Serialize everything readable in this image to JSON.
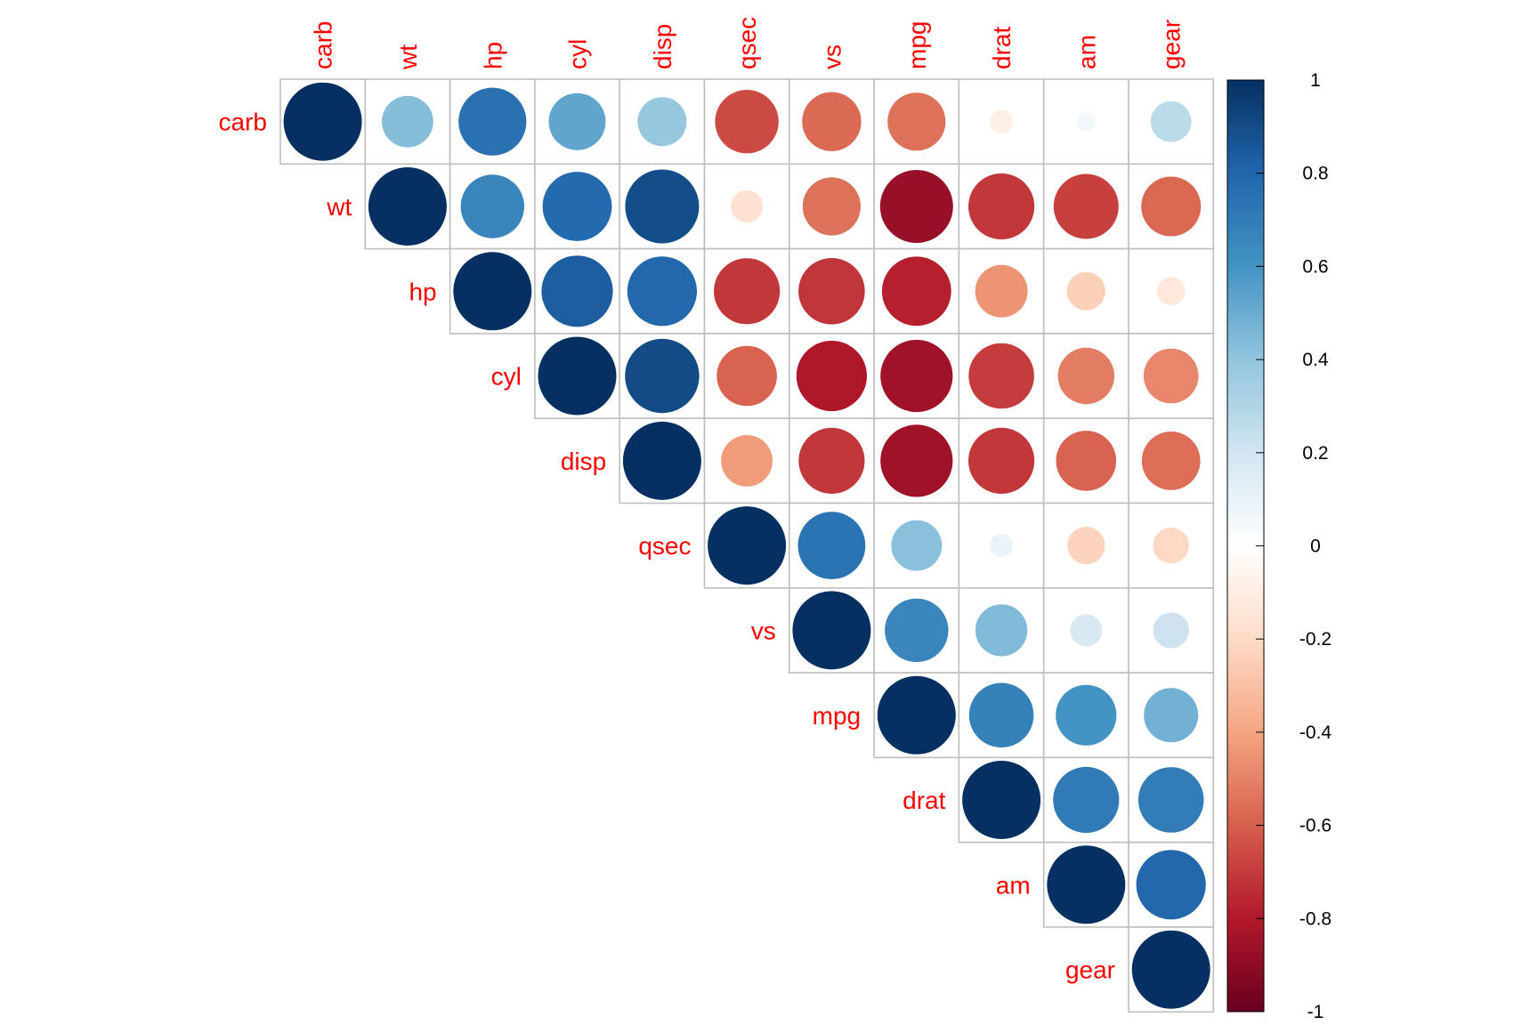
{
  "chart_data": {
    "type": "heatmap",
    "variables": [
      "carb",
      "wt",
      "hp",
      "cyl",
      "disp",
      "qsec",
      "vs",
      "mpg",
      "drat",
      "am",
      "gear"
    ],
    "values": [
      [
        1,
        0.43,
        0.75,
        0.53,
        0.39,
        -0.66,
        -0.57,
        -0.55,
        -0.09,
        0.06,
        0.27
      ],
      [
        null,
        1,
        0.66,
        0.78,
        0.89,
        -0.17,
        -0.55,
        -0.87,
        -0.71,
        -0.69,
        -0.58
      ],
      [
        null,
        null,
        1,
        0.83,
        0.79,
        -0.71,
        -0.72,
        -0.78,
        -0.45,
        -0.24,
        -0.13
      ],
      [
        null,
        null,
        null,
        1,
        0.9,
        -0.59,
        -0.81,
        -0.85,
        -0.7,
        -0.52,
        -0.49
      ],
      [
        null,
        null,
        null,
        null,
        1,
        -0.43,
        -0.71,
        -0.85,
        -0.71,
        -0.59,
        -0.56
      ],
      [
        null,
        null,
        null,
        null,
        null,
        1,
        0.74,
        0.42,
        0.09,
        -0.23,
        -0.21
      ],
      [
        null,
        null,
        null,
        null,
        null,
        null,
        1,
        0.66,
        0.44,
        0.17,
        0.21
      ],
      [
        null,
        null,
        null,
        null,
        null,
        null,
        null,
        1,
        0.68,
        0.6,
        0.48
      ],
      [
        null,
        null,
        null,
        null,
        null,
        null,
        null,
        null,
        1,
        0.71,
        0.7
      ],
      [
        null,
        null,
        null,
        null,
        null,
        null,
        null,
        null,
        null,
        1,
        0.79
      ],
      [
        null,
        null,
        null,
        null,
        null,
        null,
        null,
        null,
        null,
        null,
        1
      ]
    ],
    "colorbar_ticks": [
      "1",
      "0.8",
      "0.6",
      "0.4",
      "0.2",
      "0",
      "-0.2",
      "-0.4",
      "-0.6",
      "-0.8",
      "-1"
    ],
    "color_range": [
      -1,
      1
    ],
    "colors": {
      "label": "#ff0000",
      "grid": "#bebebe",
      "scale": [
        "#67001f",
        "#b2182b",
        "#d6604d",
        "#f4a582",
        "#fddbc7",
        "#ffffff",
        "#d1e5f0",
        "#92c5de",
        "#4393c3",
        "#2166ac",
        "#053061"
      ]
    },
    "layout": "upper-triangle",
    "legend": "colorbar-right"
  }
}
